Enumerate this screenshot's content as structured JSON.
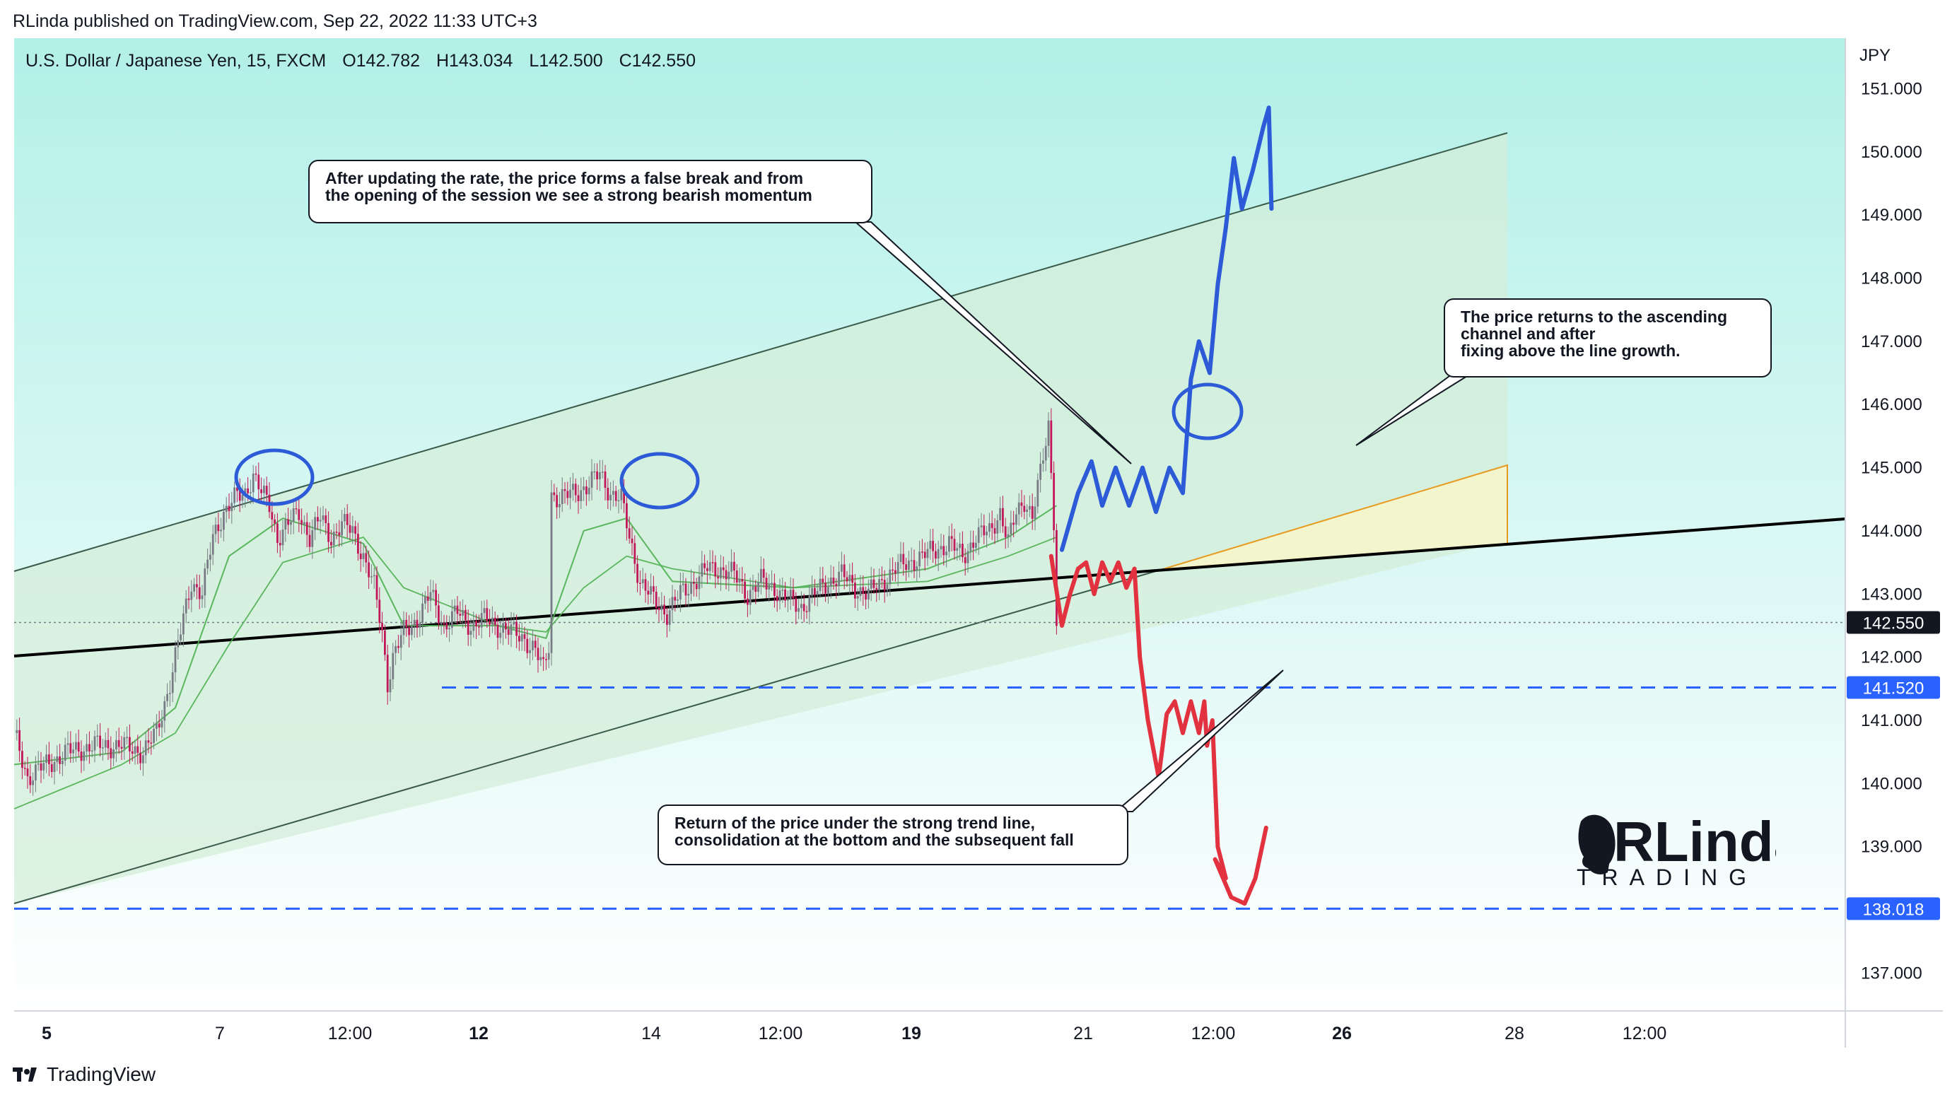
{
  "header": {
    "caption": "RLinda published on TradingView.com, Sep 22, 2022 11:33 UTC+3"
  },
  "symbol": {
    "name": "U.S. Dollar / Japanese Yen, 15, FXCM",
    "open": "O142.782",
    "high": "H143.034",
    "low": "L142.500",
    "close": "C142.550"
  },
  "annotations": {
    "top": [
      "After updating the rate, the price forms a false break and from",
      "the opening of the session we see a strong bearish momentum"
    ],
    "right": [
      "The price returns to the ascending",
      "channel and after",
      "fixing above the line growth."
    ],
    "bottom": [
      "Return of the price under the strong trend line,",
      "consolidation at the bottom and the subsequent fall"
    ]
  },
  "footer": {
    "brand": "TradingView"
  },
  "watermark": {
    "brand": "RLinda",
    "tagline": "TRADING"
  },
  "colors": {
    "bg_top": "#b2f0e8",
    "bg_bottom": "#ffffff",
    "channel_fill": "#d4eed8",
    "bull_path": "#2d5bd8",
    "bear_path": "#e2313f",
    "level_line": "#2962ff",
    "trend_line": "#000000",
    "candle_up": "#787b86",
    "candle_down": "#c2185b",
    "ma": "#4caf50",
    "label_dark": "#131722",
    "label_blue": "#2962ff"
  },
  "chart_data": {
    "type": "candlestick",
    "instrument": "USD/JPY",
    "timeframe": "15",
    "y_axis_unit": "JPY",
    "ylim": [
      136.4,
      151.8
    ],
    "y_ticks": [
      "151.000",
      "150.000",
      "149.000",
      "148.000",
      "147.000",
      "146.000",
      "145.000",
      "144.000",
      "143.000",
      "142.000",
      "141.000",
      "140.000",
      "139.000",
      "138.000",
      "137.000"
    ],
    "x_ticks": [
      "5",
      "7",
      "12:00",
      "12",
      "14",
      "12:00",
      "19",
      "21",
      "12:00",
      "26",
      "28",
      "12:00"
    ],
    "bold_x_ticks": [
      "5",
      "12",
      "19",
      "26"
    ],
    "price_labels": [
      {
        "value": "142.550",
        "kind": "last"
      },
      {
        "value": "141.520",
        "kind": "level"
      },
      {
        "value": "138.018",
        "kind": "level"
      }
    ],
    "horizontal_levels": [
      141.52,
      138.018
    ],
    "price_series": [
      [
        0,
        140.8
      ],
      [
        5,
        140.1
      ],
      [
        12,
        140.3
      ],
      [
        20,
        140.5
      ],
      [
        30,
        140.6
      ],
      [
        40,
        140.6
      ],
      [
        48,
        140.5
      ],
      [
        53,
        140.8
      ],
      [
        58,
        141.6
      ],
      [
        62,
        142.4
      ],
      [
        66,
        143.2
      ],
      [
        70,
        143.0
      ],
      [
        74,
        143.9
      ],
      [
        78,
        144.3
      ],
      [
        82,
        144.5
      ],
      [
        86,
        144.6
      ],
      [
        89,
        144.9
      ],
      [
        92,
        144.6
      ],
      [
        95,
        144.4
      ],
      [
        98,
        143.9
      ],
      [
        102,
        144.1
      ],
      [
        106,
        144.3
      ],
      [
        110,
        143.9
      ],
      [
        114,
        144.2
      ],
      [
        118,
        143.9
      ],
      [
        122,
        144.1
      ],
      [
        126,
        144.0
      ],
      [
        130,
        143.6
      ],
      [
        134,
        143.1
      ],
      [
        137,
        142.4
      ],
      [
        139,
        141.6
      ],
      [
        141,
        142.0
      ],
      [
        145,
        142.4
      ],
      [
        150,
        142.6
      ],
      [
        155,
        143.0
      ],
      [
        160,
        142.5
      ],
      [
        165,
        142.7
      ],
      [
        170,
        142.5
      ],
      [
        175,
        142.6
      ],
      [
        180,
        142.5
      ],
      [
        185,
        142.4
      ],
      [
        190,
        142.3
      ],
      [
        194,
        142.1
      ],
      [
        197,
        141.8
      ],
      [
        199,
        142.2
      ],
      [
        200,
        144.6
      ],
      [
        203,
        144.5
      ],
      [
        208,
        144.6
      ],
      [
        213,
        144.7
      ],
      [
        218,
        144.9
      ],
      [
        222,
        144.6
      ],
      [
        226,
        144.5
      ],
      [
        229,
        143.9
      ],
      [
        233,
        143.2
      ],
      [
        238,
        142.9
      ],
      [
        243,
        142.7
      ],
      [
        248,
        143.0
      ],
      [
        253,
        143.2
      ],
      [
        258,
        143.4
      ],
      [
        263,
        143.4
      ],
      [
        268,
        143.3
      ],
      [
        273,
        143.0
      ],
      [
        278,
        143.2
      ],
      [
        283,
        143.1
      ],
      [
        288,
        142.9
      ],
      [
        293,
        142.8
      ],
      [
        298,
        143.0
      ],
      [
        303,
        143.2
      ],
      [
        308,
        143.3
      ],
      [
        313,
        143.1
      ],
      [
        318,
        143.0
      ],
      [
        323,
        143.2
      ],
      [
        328,
        143.4
      ],
      [
        333,
        143.5
      ],
      [
        338,
        143.6
      ],
      [
        343,
        143.7
      ],
      [
        348,
        143.8
      ],
      [
        353,
        143.6
      ],
      [
        358,
        143.9
      ],
      [
        363,
        144.0
      ],
      [
        367,
        144.3
      ],
      [
        370,
        143.8
      ],
      [
        373,
        144.3
      ],
      [
        376,
        144.5
      ],
      [
        379,
        144.2
      ],
      [
        382,
        144.9
      ],
      [
        385,
        145.7
      ],
      [
        387,
        144.2
      ],
      [
        388,
        142.55
      ]
    ],
    "moving_averages": [
      {
        "name": "ma-fast",
        "values": [
          [
            0,
            140.3
          ],
          [
            40,
            140.5
          ],
          [
            60,
            141.2
          ],
          [
            80,
            143.6
          ],
          [
            100,
            144.2
          ],
          [
            130,
            143.8
          ],
          [
            145,
            142.5
          ],
          [
            180,
            142.5
          ],
          [
            198,
            142.3
          ],
          [
            212,
            144.0
          ],
          [
            228,
            144.2
          ],
          [
            245,
            143.2
          ],
          [
            290,
            143.1
          ],
          [
            340,
            143.4
          ],
          [
            370,
            143.9
          ],
          [
            388,
            144.4
          ]
        ]
      },
      {
        "name": "ma-slow",
        "values": [
          [
            0,
            139.6
          ],
          [
            40,
            140.3
          ],
          [
            60,
            140.8
          ],
          [
            80,
            142.2
          ],
          [
            100,
            143.5
          ],
          [
            130,
            143.9
          ],
          [
            145,
            143.1
          ],
          [
            180,
            142.5
          ],
          [
            198,
            142.4
          ],
          [
            212,
            143.1
          ],
          [
            228,
            143.6
          ],
          [
            245,
            143.4
          ],
          [
            290,
            143.1
          ],
          [
            340,
            143.2
          ],
          [
            370,
            143.6
          ],
          [
            388,
            143.9
          ]
        ]
      }
    ],
    "projection_bullish": [
      [
        390,
        143.7
      ],
      [
        396,
        144.6
      ],
      [
        401,
        145.1
      ],
      [
        405,
        144.4
      ],
      [
        410,
        145.0
      ],
      [
        415,
        144.4
      ],
      [
        420,
        145.0
      ],
      [
        425,
        144.3
      ],
      [
        430,
        145.0
      ],
      [
        435,
        144.6
      ],
      [
        438,
        146.4
      ],
      [
        441,
        147.0
      ],
      [
        445,
        146.5
      ],
      [
        448,
        147.9
      ],
      [
        451,
        148.8
      ],
      [
        454,
        149.9
      ],
      [
        457,
        149.1
      ],
      [
        461,
        149.7
      ],
      [
        465,
        150.4
      ],
      [
        467,
        150.7
      ],
      [
        468,
        149.1
      ]
    ],
    "projection_bearish": [
      [
        386,
        143.6
      ],
      [
        390,
        142.5
      ],
      [
        393,
        143.0
      ],
      [
        396,
        143.4
      ],
      [
        399,
        143.5
      ],
      [
        402,
        143.0
      ],
      [
        405,
        143.5
      ],
      [
        408,
        143.2
      ],
      [
        411,
        143.5
      ],
      [
        414,
        143.1
      ],
      [
        417,
        143.4
      ],
      [
        419,
        142.0
      ],
      [
        422,
        141.0
      ],
      [
        426,
        140.1
      ],
      [
        429,
        141.1
      ],
      [
        432,
        141.3
      ],
      [
        435,
        140.8
      ],
      [
        438,
        141.3
      ],
      [
        441,
        140.8
      ],
      [
        443,
        141.3
      ],
      [
        444,
        140.6
      ],
      [
        446,
        141.0
      ],
      [
        448,
        139.0
      ],
      [
        451,
        138.5
      ],
      [
        447,
        138.8
      ],
      [
        453,
        138.2
      ],
      [
        458,
        138.1
      ],
      [
        462,
        138.5
      ],
      [
        466,
        139.3
      ]
    ]
  }
}
